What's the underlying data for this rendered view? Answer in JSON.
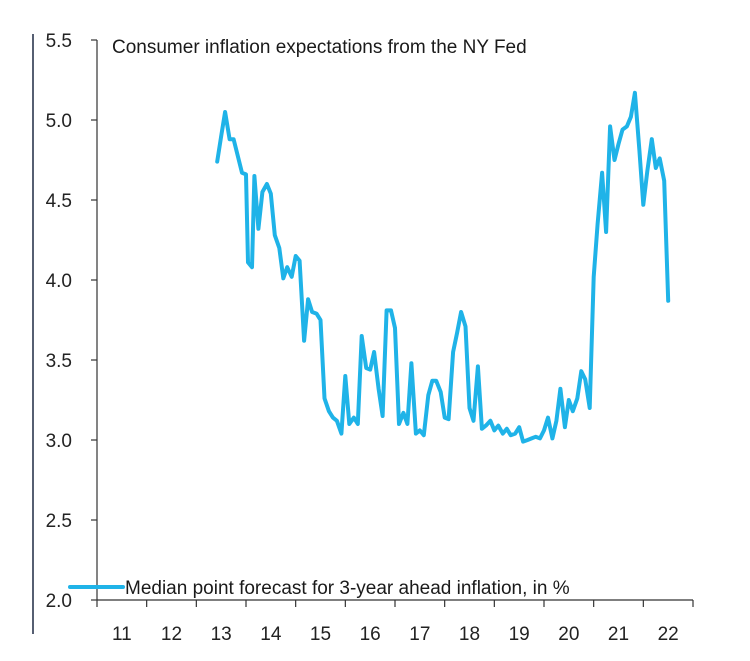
{
  "chart_data": {
    "type": "line",
    "title": "Consumer inflation expectations from the NY Fed",
    "xlabel": "",
    "ylabel": "",
    "x_ticks": [
      "11",
      "12",
      "13",
      "14",
      "15",
      "16",
      "17",
      "18",
      "19",
      "20",
      "21",
      "22"
    ],
    "x_tick_values": [
      2011,
      2012,
      2013,
      2014,
      2015,
      2016,
      2017,
      2018,
      2019,
      2020,
      2021,
      2022
    ],
    "y_ticks": [
      "2.0",
      "2.5",
      "3.0",
      "3.5",
      "4.0",
      "4.5",
      "5.0",
      "5.5"
    ],
    "y_tick_values": [
      2.0,
      2.5,
      3.0,
      3.5,
      4.0,
      4.5,
      5.0,
      5.5
    ],
    "xlim": [
      2011,
      2023
    ],
    "ylim": [
      2.0,
      5.5
    ],
    "grid": false,
    "legend_position": "bottom-left",
    "series": [
      {
        "name": "Median point forecast for 3-year ahead inflation, in %",
        "color": "#1fb3e8",
        "points": [
          [
            2013.42,
            4.74
          ],
          [
            2013.5,
            4.9
          ],
          [
            2013.58,
            5.05
          ],
          [
            2013.67,
            4.88
          ],
          [
            2013.75,
            4.88
          ],
          [
            2013.83,
            4.78
          ],
          [
            2013.92,
            4.67
          ],
          [
            2014.0,
            4.66
          ],
          [
            2014.04,
            4.11
          ],
          [
            2014.12,
            4.08
          ],
          [
            2014.17,
            4.65
          ],
          [
            2014.25,
            4.32
          ],
          [
            2014.33,
            4.55
          ],
          [
            2014.42,
            4.6
          ],
          [
            2014.5,
            4.54
          ],
          [
            2014.58,
            4.28
          ],
          [
            2014.67,
            4.2
          ],
          [
            2014.75,
            4.01
          ],
          [
            2014.83,
            4.08
          ],
          [
            2014.92,
            4.02
          ],
          [
            2015.0,
            4.15
          ],
          [
            2015.08,
            4.12
          ],
          [
            2015.17,
            3.62
          ],
          [
            2015.25,
            3.88
          ],
          [
            2015.33,
            3.8
          ],
          [
            2015.42,
            3.79
          ],
          [
            2015.5,
            3.75
          ],
          [
            2015.58,
            3.26
          ],
          [
            2015.67,
            3.18
          ],
          [
            2015.75,
            3.14
          ],
          [
            2015.83,
            3.12
          ],
          [
            2015.92,
            3.04
          ],
          [
            2016.0,
            3.4
          ],
          [
            2016.08,
            3.1
          ],
          [
            2016.17,
            3.14
          ],
          [
            2016.25,
            3.1
          ],
          [
            2016.33,
            3.65
          ],
          [
            2016.42,
            3.45
          ],
          [
            2016.5,
            3.44
          ],
          [
            2016.58,
            3.55
          ],
          [
            2016.67,
            3.32
          ],
          [
            2016.75,
            3.15
          ],
          [
            2016.83,
            3.81
          ],
          [
            2016.92,
            3.81
          ],
          [
            2017.0,
            3.7
          ],
          [
            2017.08,
            3.1
          ],
          [
            2017.17,
            3.17
          ],
          [
            2017.25,
            3.1
          ],
          [
            2017.33,
            3.48
          ],
          [
            2017.42,
            3.04
          ],
          [
            2017.5,
            3.06
          ],
          [
            2017.58,
            3.03
          ],
          [
            2017.67,
            3.28
          ],
          [
            2017.75,
            3.37
          ],
          [
            2017.83,
            3.37
          ],
          [
            2017.92,
            3.3
          ],
          [
            2018.0,
            3.14
          ],
          [
            2018.08,
            3.13
          ],
          [
            2018.17,
            3.55
          ],
          [
            2018.25,
            3.67
          ],
          [
            2018.33,
            3.8
          ],
          [
            2018.42,
            3.71
          ],
          [
            2018.5,
            3.2
          ],
          [
            2018.58,
            3.12
          ],
          [
            2018.67,
            3.46
          ],
          [
            2018.75,
            3.07
          ],
          [
            2018.83,
            3.09
          ],
          [
            2018.92,
            3.12
          ],
          [
            2019.0,
            3.06
          ],
          [
            2019.08,
            3.09
          ],
          [
            2019.17,
            3.04
          ],
          [
            2019.25,
            3.07
          ],
          [
            2019.33,
            3.03
          ],
          [
            2019.42,
            3.04
          ],
          [
            2019.5,
            3.08
          ],
          [
            2019.58,
            2.99
          ],
          [
            2019.67,
            3.0
          ],
          [
            2019.75,
            3.01
          ],
          [
            2019.83,
            3.02
          ],
          [
            2019.92,
            3.01
          ],
          [
            2020.0,
            3.06
          ],
          [
            2020.08,
            3.14
          ],
          [
            2020.17,
            3.01
          ],
          [
            2020.25,
            3.12
          ],
          [
            2020.33,
            3.32
          ],
          [
            2020.42,
            3.08
          ],
          [
            2020.5,
            3.25
          ],
          [
            2020.58,
            3.18
          ],
          [
            2020.67,
            3.26
          ],
          [
            2020.75,
            3.43
          ],
          [
            2020.83,
            3.38
          ],
          [
            2020.92,
            3.2
          ],
          [
            2021.0,
            4.02
          ],
          [
            2021.08,
            4.35
          ],
          [
            2021.17,
            4.67
          ],
          [
            2021.25,
            4.3
          ],
          [
            2021.33,
            4.96
          ],
          [
            2021.42,
            4.75
          ],
          [
            2021.5,
            4.85
          ],
          [
            2021.58,
            4.94
          ],
          [
            2021.67,
            4.96
          ],
          [
            2021.75,
            5.02
          ],
          [
            2021.83,
            5.17
          ],
          [
            2021.92,
            4.81
          ],
          [
            2022.0,
            4.47
          ],
          [
            2022.08,
            4.68
          ],
          [
            2022.17,
            4.88
          ],
          [
            2022.25,
            4.7
          ],
          [
            2022.33,
            4.76
          ],
          [
            2022.42,
            4.62
          ],
          [
            2022.5,
            3.87
          ]
        ]
      }
    ]
  }
}
